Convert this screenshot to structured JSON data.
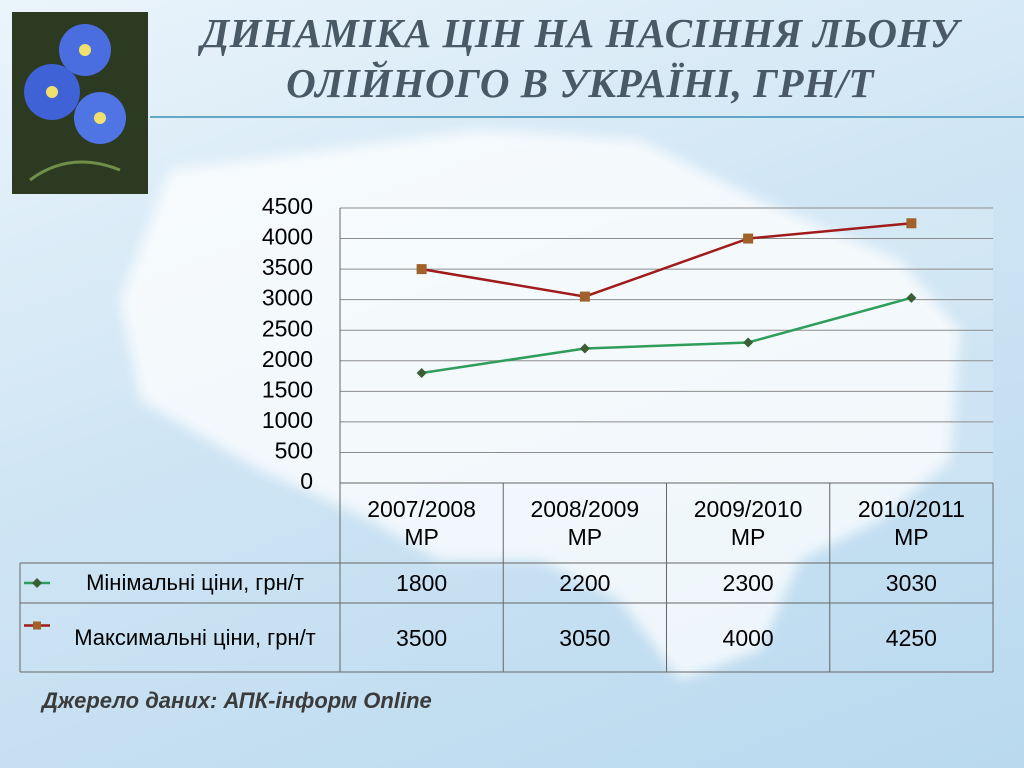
{
  "chart_data": {
    "type": "line",
    "title": "ДИНАМІКА ЦІН НА НАСІННЯ ЛЬОНУ ОЛІЙНОГО В УКРАЇНІ, ГРН/Т",
    "categories": [
      "2007/2008 МР",
      "2008/2009 МР",
      "2009/2010 МР",
      "2010/2011 МР"
    ],
    "series": [
      {
        "name": "Мінімальні ціни, грн/т",
        "color": "#2e9e5a",
        "marker": "diamond",
        "marker_color": "#3b5e34",
        "values": [
          1800,
          2200,
          2300,
          3030
        ]
      },
      {
        "name": "Максимальні ціни, грн/т",
        "color": "#a01c1c",
        "marker": "square",
        "marker_color": "#a0622a",
        "values": [
          3500,
          3050,
          4000,
          4250
        ]
      }
    ],
    "ylim": [
      0,
      4500
    ],
    "yticks": [
      0,
      500,
      1000,
      1500,
      2000,
      2500,
      3000,
      3500,
      4000,
      4500
    ],
    "grid": true,
    "data_table": true,
    "source": "Джерело даних: АПК-інформ Online"
  }
}
